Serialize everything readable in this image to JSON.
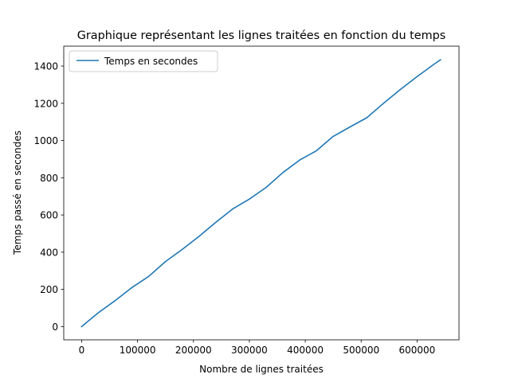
{
  "chart_data": {
    "type": "line",
    "title": "Graphique représentant les lignes traitées en fonction du temps",
    "xlabel": "Nombre de lignes traitées",
    "ylabel": "Temps passé en secondes",
    "xlim": [
      -32000,
      675000
    ],
    "ylim": [
      -71,
      1507
    ],
    "xticks": [
      0,
      100000,
      200000,
      300000,
      400000,
      500000,
      600000
    ],
    "xtick_labels": [
      "0",
      "100000",
      "200000",
      "300000",
      "400000",
      "500000",
      "600000"
    ],
    "yticks": [
      0,
      200,
      400,
      600,
      800,
      1000,
      1200,
      1400
    ],
    "ytick_labels": [
      "0",
      "200",
      "400",
      "600",
      "800",
      "1000",
      "1200",
      "1400"
    ],
    "grid": false,
    "legend_position": "top-left",
    "series": [
      {
        "name": "Temps en secondes",
        "color": "#1f77b4",
        "x": [
          0,
          30000,
          60000,
          90000,
          120000,
          150000,
          180000,
          210000,
          240000,
          270000,
          300000,
          330000,
          360000,
          390000,
          420000,
          450000,
          480000,
          510000,
          540000,
          570000,
          600000,
          630000,
          642000
        ],
        "y": [
          0,
          75,
          140,
          210,
          270,
          350,
          415,
          485,
          560,
          632,
          685,
          748,
          828,
          895,
          945,
          1022,
          1073,
          1122,
          1200,
          1274,
          1343,
          1409,
          1434
        ]
      }
    ]
  }
}
